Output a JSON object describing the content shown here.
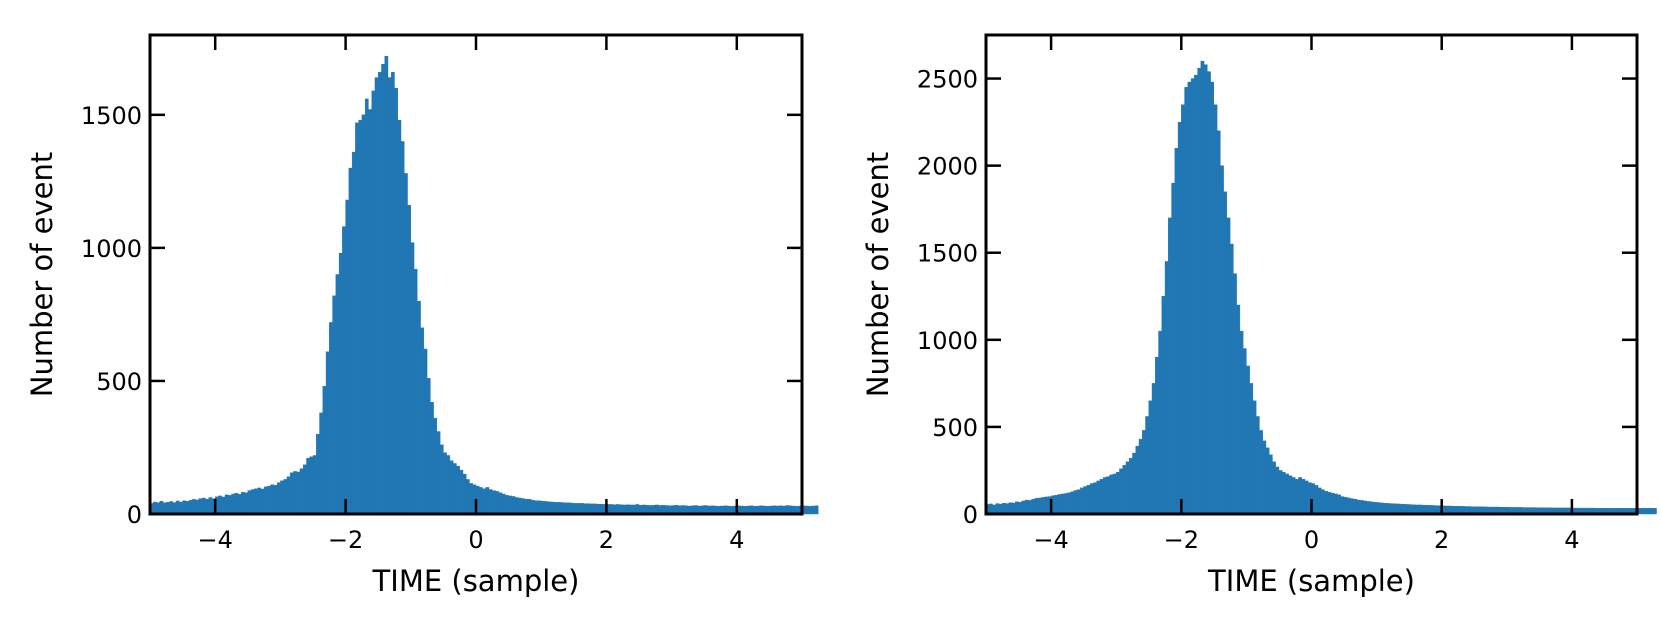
{
  "chart_data": [
    {
      "type": "bar",
      "title": "",
      "xlabel": "TIME (sample)",
      "ylabel": "Number of event",
      "xlim": [
        -5,
        5
      ],
      "ylim": [
        0,
        1800
      ],
      "xticks": [
        -4,
        -2,
        0,
        2,
        4
      ],
      "xtick_labels": [
        "−4",
        "−2",
        "0",
        "2",
        "4"
      ],
      "yticks": [
        0,
        500,
        1000,
        1500
      ],
      "ytick_labels": [
        "0",
        "500",
        "1000",
        "1500"
      ],
      "grid": false,
      "color": "#2077b4",
      "bin_start": -5,
      "bin_width": 0.05,
      "values": [
        40,
        45,
        43,
        48,
        42,
        44,
        47,
        43,
        49,
        45,
        50,
        48,
        52,
        55,
        53,
        58,
        60,
        56,
        62,
        58,
        65,
        68,
        64,
        72,
        70,
        75,
        78,
        74,
        82,
        80,
        88,
        92,
        95,
        98,
        94,
        102,
        105,
        110,
        108,
        118,
        125,
        130,
        140,
        155,
        160,
        158,
        170,
        185,
        210,
        215,
        220,
        300,
        380,
        480,
        610,
        720,
        820,
        900,
        980,
        1080,
        1180,
        1300,
        1360,
        1470,
        1480,
        1500,
        1560,
        1520,
        1590,
        1640,
        1660,
        1690,
        1720,
        1640,
        1660,
        1600,
        1480,
        1400,
        1280,
        1160,
        1020,
        920,
        800,
        700,
        620,
        510,
        420,
        360,
        310,
        260,
        230,
        220,
        200,
        190,
        180,
        165,
        150,
        130,
        115,
        110,
        105,
        100,
        95,
        100,
        92,
        88,
        85,
        80,
        75,
        70,
        68,
        66,
        62,
        60,
        58,
        56,
        55,
        52,
        50,
        50,
        48,
        47,
        46,
        45,
        44,
        44,
        43,
        42,
        42,
        41,
        40,
        40,
        40,
        39,
        39,
        38,
        38,
        37,
        37,
        36,
        36,
        36,
        35,
        36,
        35,
        34,
        35,
        34,
        34,
        36,
        33,
        34,
        33,
        32,
        33,
        34,
        32,
        33,
        32,
        31,
        32,
        33,
        31,
        32,
        31,
        30,
        31,
        32,
        30,
        31,
        32,
        30,
        31,
        30,
        29,
        30,
        31,
        30,
        29,
        30,
        31,
        30,
        29,
        30,
        31,
        29,
        30,
        31,
        30,
        29,
        30,
        31,
        30,
        31,
        30,
        32,
        31,
        30,
        29,
        30,
        31,
        30,
        29,
        30,
        31
      ]
    },
    {
      "type": "bar",
      "title": "",
      "xlabel": "TIME (sample)",
      "ylabel": "Number of event",
      "xlim": [
        -5,
        5
      ],
      "ylim": [
        0,
        2750
      ],
      "xticks": [
        -4,
        -2,
        0,
        2,
        4
      ],
      "xtick_labels": [
        "−4",
        "−2",
        "0",
        "2",
        "4"
      ],
      "yticks": [
        0,
        500,
        1000,
        1500,
        2000,
        2500
      ],
      "ytick_labels": [
        "0",
        "500",
        "1000",
        "1500",
        "2000",
        "2500"
      ],
      "grid": false,
      "color": "#2077b4",
      "bin_start": -5,
      "bin_width": 0.05,
      "values": [
        55,
        58,
        52,
        60,
        57,
        62,
        60,
        65,
        63,
        70,
        68,
        75,
        80,
        78,
        85,
        90,
        92,
        95,
        98,
        100,
        105,
        108,
        112,
        115,
        118,
        122,
        128,
        135,
        140,
        150,
        158,
        165,
        175,
        180,
        190,
        200,
        210,
        215,
        225,
        230,
        240,
        260,
        280,
        300,
        320,
        350,
        390,
        430,
        480,
        560,
        650,
        750,
        900,
        1050,
        1250,
        1450,
        1700,
        1900,
        2100,
        2250,
        2350,
        2450,
        2480,
        2500,
        2520,
        2560,
        2600,
        2580,
        2540,
        2480,
        2350,
        2200,
        2000,
        1850,
        1700,
        1550,
        1380,
        1200,
        1050,
        950,
        850,
        750,
        650,
        560,
        480,
        420,
        380,
        340,
        300,
        270,
        250,
        240,
        230,
        220,
        210,
        200,
        210,
        200,
        190,
        180,
        175,
        165,
        150,
        140,
        130,
        125,
        120,
        115,
        110,
        100,
        96,
        92,
        88,
        85,
        80,
        78,
        75,
        72,
        70,
        68,
        66,
        64,
        62,
        61,
        60,
        59,
        58,
        57,
        56,
        55,
        54,
        53,
        52,
        52,
        51,
        50,
        50,
        49,
        48,
        48,
        47,
        46,
        46,
        45,
        45,
        44,
        44,
        43,
        43,
        42,
        42,
        42,
        41,
        41,
        40,
        40,
        40,
        40,
        39,
        39,
        39,
        38,
        38,
        38,
        38,
        37,
        37,
        37,
        37,
        36,
        36,
        36,
        36,
        36,
        35,
        35,
        35,
        35,
        35,
        35,
        34,
        34,
        34,
        34,
        34,
        34,
        34,
        33,
        33,
        33,
        33,
        33,
        33,
        33,
        33,
        33,
        33,
        33,
        33,
        33,
        33,
        33,
        33,
        33,
        33,
        33
      ]
    }
  ]
}
